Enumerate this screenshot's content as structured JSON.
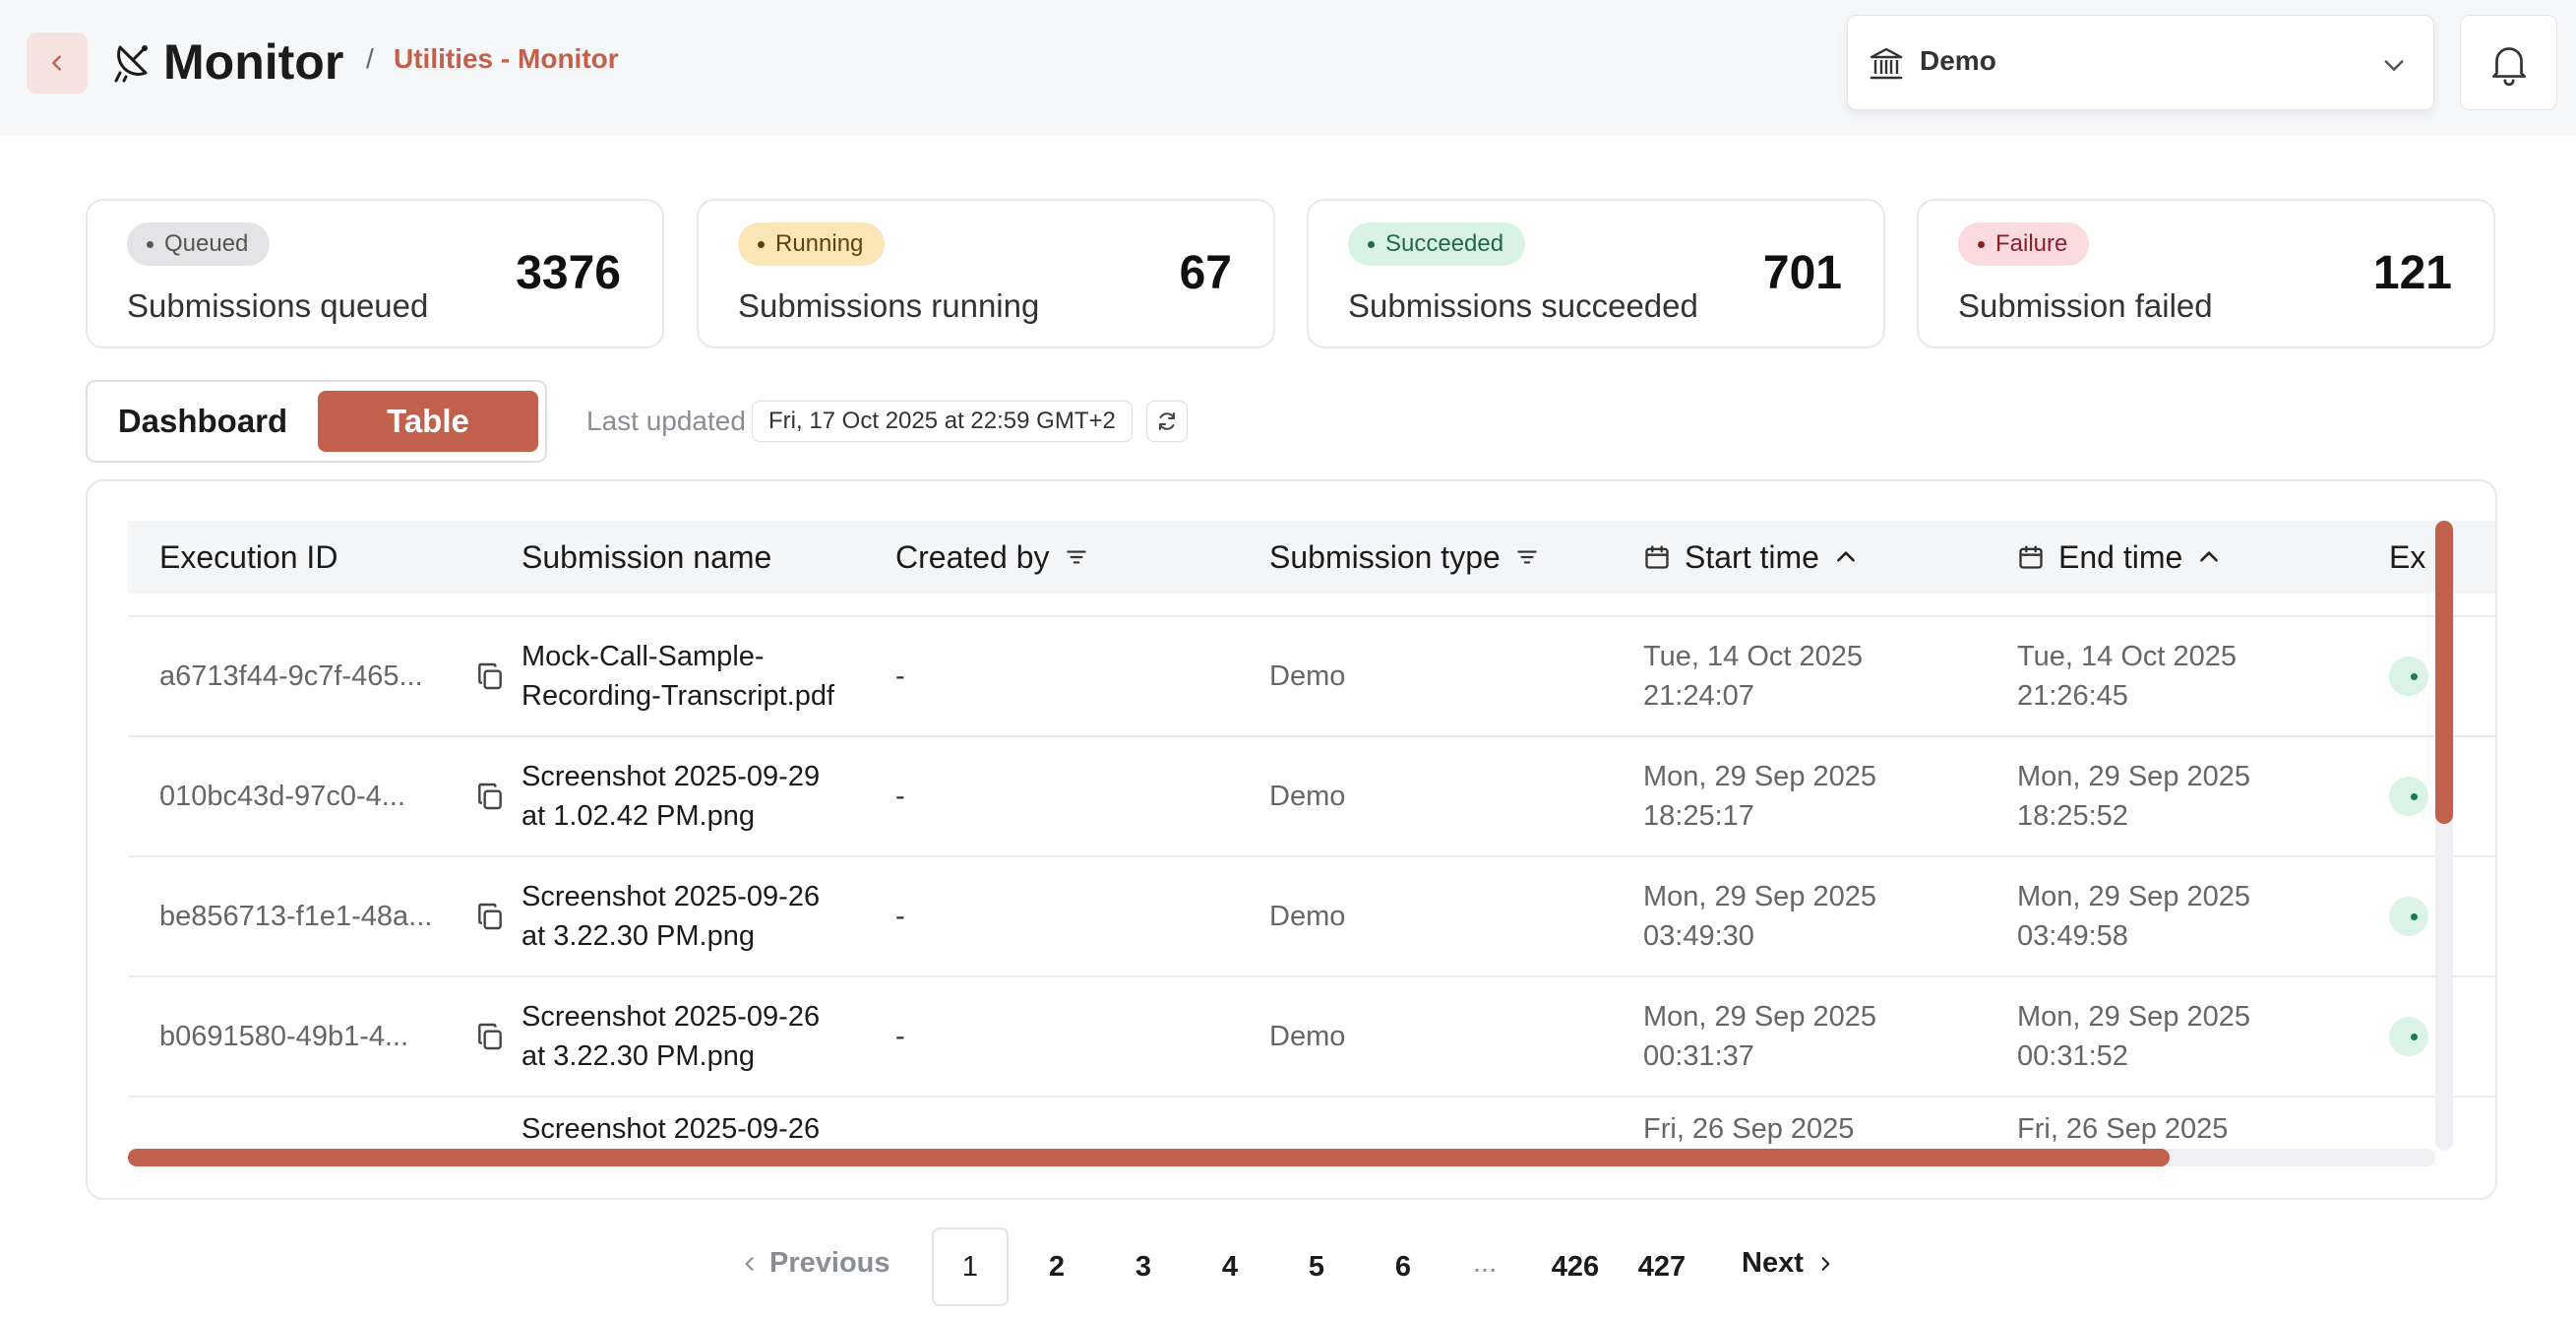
{
  "header": {
    "title": "Monitor",
    "breadcrumb_sep": "/",
    "breadcrumb": "Utilities - Monitor",
    "org_select": "Demo",
    "icons": {
      "back": "chevron-left-icon",
      "brand": "satellite-dish-icon",
      "org": "bank-icon",
      "bell": "bell-icon"
    }
  },
  "stats": [
    {
      "badge": "Queued",
      "label": "Submissions queued",
      "value": "3376",
      "badge_bg": "#e4e4e6",
      "badge_fg": "#555555"
    },
    {
      "badge": "Running",
      "label": "Submissions running",
      "value": "67",
      "badge_bg": "#fbe6b8",
      "badge_fg": "#5a4312"
    },
    {
      "badge": "Succeeded",
      "label": "Submissions succeeded",
      "value": "701",
      "badge_bg": "#d8f3e4",
      "badge_fg": "#1f6a44"
    },
    {
      "badge": "Failure",
      "label": "Submission failed",
      "value": "121",
      "badge_bg": "#fbdbdd",
      "badge_fg": "#8a1f27"
    }
  ],
  "view_toggle": {
    "dashboard": "Dashboard",
    "table": "Table",
    "active": "Table"
  },
  "last_updated": {
    "label": "Last updated",
    "value": "Fri, 17 Oct 2025 at 22:59 GMT+2"
  },
  "table": {
    "columns": {
      "execution_id": "Execution ID",
      "submission_name": "Submission name",
      "created_by": "Created by",
      "submission_type": "Submission type",
      "start_time": "Start time",
      "end_time": "End time",
      "extra": "Ex"
    },
    "rows": [
      {
        "id": "a6713f44-9c7f-465...",
        "name": [
          "Mock-Call-Sample-",
          "Recording-Transcript.pdf"
        ],
        "by": "-",
        "type": "Demo",
        "start": [
          "Tue, 14 Oct 2025",
          "21:24:07"
        ],
        "end": [
          "Tue, 14 Oct 2025",
          "21:26:45"
        ]
      },
      {
        "id": "010bc43d-97c0-4...",
        "name": [
          "Screenshot 2025-09-29",
          "at 1.02.42 PM.png"
        ],
        "by": "-",
        "type": "Demo",
        "start": [
          "Mon, 29 Sep 2025",
          "18:25:17"
        ],
        "end": [
          "Mon, 29 Sep 2025",
          "18:25:52"
        ]
      },
      {
        "id": "be856713-f1e1-48a...",
        "name": [
          "Screenshot 2025-09-26",
          "at 3.22.30 PM.png"
        ],
        "by": "-",
        "type": "Demo",
        "start": [
          "Mon, 29 Sep 2025",
          "03:49:30"
        ],
        "end": [
          "Mon, 29 Sep 2025",
          "03:49:58"
        ]
      },
      {
        "id": "b0691580-49b1-4...",
        "name": [
          "Screenshot 2025-09-26",
          "at 3.22.30 PM.png"
        ],
        "by": "-",
        "type": "Demo",
        "start": [
          "Mon, 29 Sep 2025",
          "00:31:37"
        ],
        "end": [
          "Mon, 29 Sep 2025",
          "00:31:52"
        ]
      },
      {
        "id": "",
        "name": [
          "Screenshot 2025-09-26",
          ""
        ],
        "by": "",
        "type": "",
        "start": [
          "Fri, 26 Sep 2025",
          ""
        ],
        "end": [
          "Fri, 26 Sep 2025",
          ""
        ]
      }
    ]
  },
  "pagination": {
    "prev": "Previous",
    "pages": [
      "1",
      "2",
      "3",
      "4",
      "5",
      "6"
    ],
    "ellipsis": "...",
    "last_pages": [
      "426",
      "427"
    ],
    "next": "Next",
    "current": "1"
  },
  "colors": {
    "accent": "#c0604d",
    "accent_soft": "#f6e3df"
  }
}
